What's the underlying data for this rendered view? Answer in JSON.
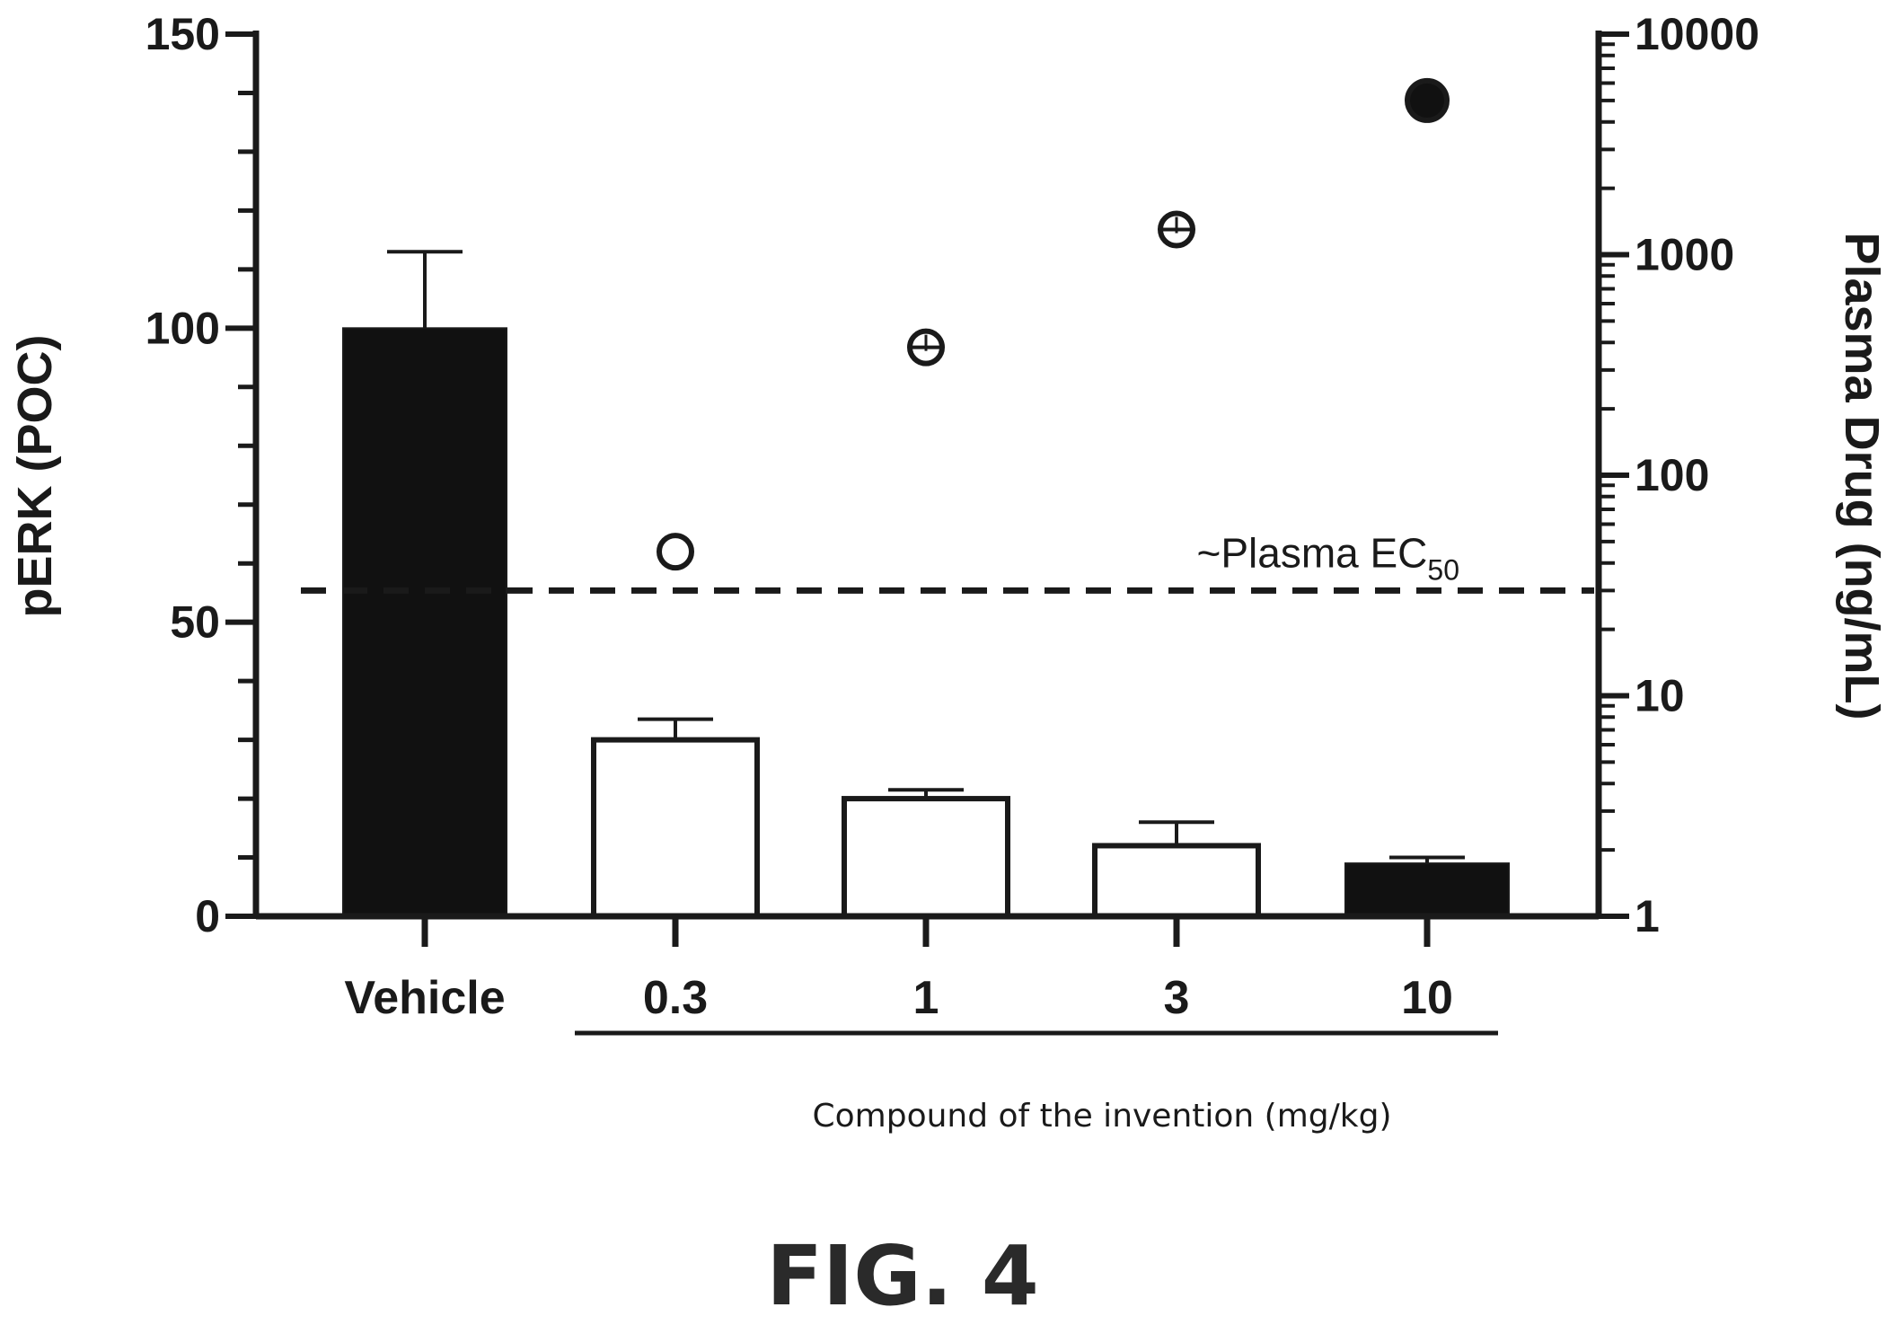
{
  "chart_data": {
    "type": "bar",
    "categories": [
      "Vehicle",
      "0.3",
      "1",
      "3",
      "10"
    ],
    "group_label": "Compound of the invention (mg/kg)",
    "figure_label": "FIG. 4",
    "left_axis": {
      "title": "pERK (POC)",
      "ylim": [
        0,
        150
      ],
      "major_ticks": [
        0,
        50,
        100,
        150
      ],
      "tick_labels": [
        "0",
        "50",
        "100",
        "150"
      ],
      "minor_step": 10
    },
    "right_axis": {
      "title": "Plasma Drug (ng/mL)",
      "scale": "log",
      "ylim": [
        1,
        10000
      ],
      "major_ticks": [
        1,
        10,
        100,
        1000,
        10000
      ],
      "tick_labels": [
        "1",
        "10",
        "100",
        "1000",
        "10000"
      ]
    },
    "bars": {
      "values": [
        100,
        30,
        20,
        12,
        9
      ],
      "errors": [
        13,
        3.5,
        1.5,
        4,
        1
      ],
      "fill": [
        "#111111",
        "#ffffff",
        "#ffffff",
        "#ffffff",
        "#111111"
      ]
    },
    "plasma_points": {
      "categories": [
        "0.3",
        "1",
        "3",
        "10"
      ],
      "values": [
        45,
        380,
        1300,
        5000
      ],
      "filled": [
        false,
        false,
        false,
        true
      ],
      "has_errorbar": [
        false,
        true,
        true,
        false
      ]
    },
    "reference_line": {
      "axis": "right",
      "value": 30,
      "style": "dashed",
      "label_main": "~Plasma EC",
      "label_sub": "50"
    },
    "grid": false,
    "legend": "none",
    "colors": {
      "ink": "#1a1a1a",
      "dark_bar": "#111111"
    }
  }
}
